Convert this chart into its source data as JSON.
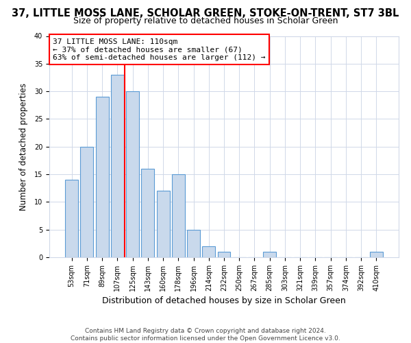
{
  "title": "37, LITTLE MOSS LANE, SCHOLAR GREEN, STOKE-ON-TRENT, ST7 3BL",
  "subtitle": "Size of property relative to detached houses in Scholar Green",
  "xlabel": "Distribution of detached houses by size in Scholar Green",
  "ylabel": "Number of detached properties",
  "bar_labels": [
    "53sqm",
    "71sqm",
    "89sqm",
    "107sqm",
    "125sqm",
    "143sqm",
    "160sqm",
    "178sqm",
    "196sqm",
    "214sqm",
    "232sqm",
    "250sqm",
    "267sqm",
    "285sqm",
    "303sqm",
    "321sqm",
    "339sqm",
    "357sqm",
    "374sqm",
    "392sqm",
    "410sqm"
  ],
  "bar_values": [
    14,
    20,
    29,
    33,
    30,
    16,
    12,
    15,
    5,
    2,
    1,
    0,
    0,
    1,
    0,
    0,
    0,
    0,
    0,
    0,
    1
  ],
  "bar_color": "#c9d9ec",
  "bar_edge_color": "#5b9bd5",
  "red_line_index": 3,
  "annotation_line1": "37 LITTLE MOSS LANE: 110sqm",
  "annotation_line2": "← 37% of detached houses are smaller (67)",
  "annotation_line3": "63% of semi-detached houses are larger (112) →",
  "ylim": [
    0,
    40
  ],
  "background_color": "#ffffff",
  "grid_color": "#d0d8e8",
  "footer_text": "Contains HM Land Registry data © Crown copyright and database right 2024.\nContains public sector information licensed under the Open Government Licence v3.0.",
  "title_fontsize": 10.5,
  "subtitle_fontsize": 9,
  "xlabel_fontsize": 9,
  "ylabel_fontsize": 8.5,
  "tick_fontsize": 7,
  "annotation_fontsize": 8,
  "footer_fontsize": 6.5
}
